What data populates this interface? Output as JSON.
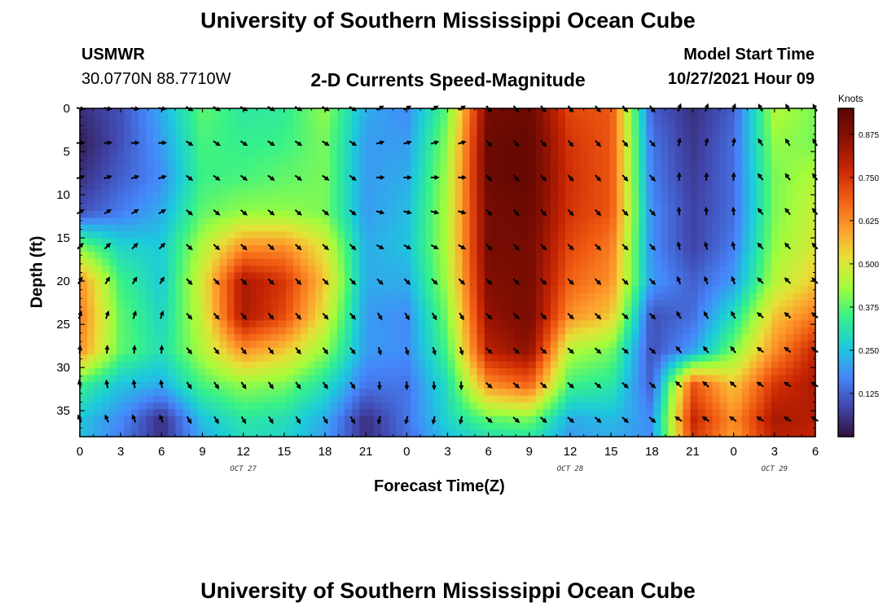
{
  "header": {
    "title": "University of Southern Mississippi Ocean Cube",
    "station_id": "USMWR",
    "coordinates": "30.0770N  88.7710W",
    "plot_title": "2-D Currents Speed-Magnitude",
    "model_start_label": "Model Start Time",
    "model_start_value": "10/27/2021 Hour 09"
  },
  "footer": {
    "title": "University of Southern Mississippi Ocean Cube"
  },
  "colorbar": {
    "unit_label": "Knots",
    "ticks": [
      "0.875",
      "0.750",
      "0.625",
      "0.500",
      "0.375",
      "0.250",
      "0.125"
    ],
    "colors": [
      "#30123b",
      "#4146ac",
      "#4686fb",
      "#1ccbdb",
      "#35f18a",
      "#a2fc3c",
      "#e7e036",
      "#fe9b2d",
      "#f05b12",
      "#c72503",
      "#8a1003",
      "#5a0702"
    ]
  },
  "chart_data": {
    "type": "heatmap",
    "title": "2-D Currents Speed-Magnitude",
    "xlabel": "Forecast Time(Z)",
    "ylabel": "Depth (ft)",
    "x_tick_labels": [
      "0",
      "3",
      "6",
      "9",
      "12",
      "15",
      "18",
      "21",
      "0",
      "3",
      "6",
      "9",
      "12",
      "15",
      "18",
      "21",
      "0",
      "3",
      "6"
    ],
    "date_labels": [
      {
        "label": "OCT 27",
        "at_hour": 12
      },
      {
        "label": "OCT 28",
        "at_hour": 36
      },
      {
        "label": "OCT 29",
        "at_hour": 51
      }
    ],
    "y_tick_labels": [
      "0",
      "5",
      "10",
      "15",
      "20",
      "25",
      "30",
      "35"
    ],
    "x_range_hours": [
      0,
      54
    ],
    "y_range_ft": [
      0,
      38
    ],
    "value_unit": "Knots",
    "value_range": [
      0.0,
      0.95
    ],
    "grid_hours": [
      0,
      3,
      6,
      9,
      12,
      15,
      18,
      21,
      24,
      27,
      30,
      33,
      36,
      39,
      42,
      45,
      48,
      51,
      54
    ],
    "grid_depths_ft": [
      0,
      4,
      8,
      12,
      16,
      20,
      24,
      28,
      32,
      36,
      38
    ],
    "speed_knots": [
      [
        0.05,
        0.1,
        0.22,
        0.38,
        0.32,
        0.33,
        0.42,
        0.22,
        0.18,
        0.38,
        0.9,
        0.92,
        0.72,
        0.7,
        0.12,
        0.05,
        0.12,
        0.45,
        0.4
      ],
      [
        0.02,
        0.1,
        0.2,
        0.36,
        0.34,
        0.35,
        0.4,
        0.2,
        0.2,
        0.42,
        0.92,
        0.93,
        0.75,
        0.7,
        0.15,
        0.06,
        0.14,
        0.42,
        0.4
      ],
      [
        0.05,
        0.12,
        0.18,
        0.35,
        0.36,
        0.38,
        0.4,
        0.2,
        0.22,
        0.44,
        0.92,
        0.93,
        0.76,
        0.7,
        0.16,
        0.07,
        0.14,
        0.4,
        0.45
      ],
      [
        0.1,
        0.16,
        0.22,
        0.38,
        0.42,
        0.42,
        0.4,
        0.2,
        0.24,
        0.45,
        0.9,
        0.92,
        0.75,
        0.7,
        0.18,
        0.08,
        0.14,
        0.4,
        0.48
      ],
      [
        0.4,
        0.28,
        0.26,
        0.45,
        0.62,
        0.62,
        0.5,
        0.22,
        0.25,
        0.45,
        0.9,
        0.9,
        0.72,
        0.65,
        0.18,
        0.08,
        0.16,
        0.42,
        0.5
      ],
      [
        0.62,
        0.35,
        0.26,
        0.5,
        0.82,
        0.75,
        0.55,
        0.22,
        0.22,
        0.44,
        0.88,
        0.9,
        0.68,
        0.62,
        0.2,
        0.12,
        0.2,
        0.45,
        0.55
      ],
      [
        0.65,
        0.38,
        0.28,
        0.48,
        0.82,
        0.72,
        0.5,
        0.2,
        0.18,
        0.4,
        0.85,
        0.9,
        0.62,
        0.55,
        0.1,
        0.14,
        0.3,
        0.55,
        0.65
      ],
      [
        0.62,
        0.38,
        0.3,
        0.45,
        0.62,
        0.55,
        0.42,
        0.2,
        0.18,
        0.36,
        0.8,
        0.86,
        0.45,
        0.4,
        0.1,
        0.2,
        0.4,
        0.62,
        0.78
      ],
      [
        0.35,
        0.25,
        0.22,
        0.36,
        0.42,
        0.4,
        0.3,
        0.15,
        0.15,
        0.3,
        0.62,
        0.68,
        0.35,
        0.32,
        0.12,
        0.7,
        0.55,
        0.75,
        0.82
      ],
      [
        0.25,
        0.18,
        0.05,
        0.25,
        0.32,
        0.3,
        0.22,
        0.05,
        0.15,
        0.28,
        0.38,
        0.4,
        0.22,
        0.24,
        0.18,
        0.78,
        0.62,
        0.82,
        0.8
      ],
      [
        0.25,
        0.16,
        0.05,
        0.22,
        0.3,
        0.28,
        0.2,
        0.05,
        0.14,
        0.25,
        0.3,
        0.32,
        0.2,
        0.22,
        0.18,
        0.75,
        0.6,
        0.8,
        0.78
      ]
    ],
    "vector_hours": [
      0,
      2,
      4,
      6,
      8,
      10,
      12,
      14,
      16,
      18,
      20,
      22,
      24,
      26,
      28,
      30,
      32,
      34,
      36,
      38,
      40,
      42,
      44,
      46,
      48,
      50,
      52,
      54
    ],
    "vector_depths_ft": [
      0,
      4,
      8,
      12,
      16,
      20,
      24,
      28,
      32,
      36
    ],
    "direction_regimes": [
      {
        "from_hour": 0,
        "to_hour": 7,
        "upper_direction_deg": 100,
        "lower_direction_deg": 330
      },
      {
        "from_hour": 7,
        "to_hour": 20,
        "upper_direction_deg": 120,
        "lower_direction_deg": 150
      },
      {
        "from_hour": 20,
        "to_hour": 29,
        "upper_direction_deg": 60,
        "lower_direction_deg": 200
      },
      {
        "from_hour": 29,
        "to_hour": 43,
        "upper_direction_deg": 140,
        "lower_direction_deg": 130
      },
      {
        "from_hour": 43,
        "to_hour": 49,
        "upper_direction_deg": 20,
        "lower_direction_deg": 300
      },
      {
        "from_hour": 49,
        "to_hour": 54,
        "upper_direction_deg": 330,
        "lower_direction_deg": 300
      }
    ]
  }
}
